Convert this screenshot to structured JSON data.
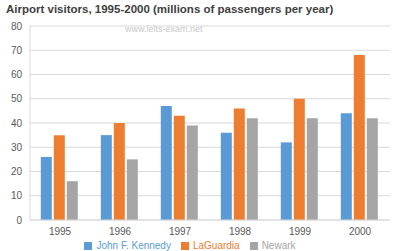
{
  "chart_data": {
    "type": "bar",
    "title": "Airport visitors, 1995-2000 (millions of passengers per year)",
    "annotations": [
      "www.ielts-exam.net"
    ],
    "categories": [
      "1995",
      "1996",
      "1997",
      "1998",
      "1999",
      "2000"
    ],
    "series": [
      {
        "name": "John F. Kennedy",
        "color": "#5b9bd5",
        "values": [
          26,
          35,
          47,
          36,
          32,
          44
        ]
      },
      {
        "name": "LaGuardia",
        "color": "#ed7d31",
        "values": [
          35,
          40,
          43,
          46,
          50,
          68
        ]
      },
      {
        "name": "Newark",
        "color": "#a5a5a5",
        "values": [
          16,
          25,
          39,
          42,
          42,
          42
        ]
      }
    ],
    "ylim": [
      0,
      80
    ],
    "yticks": [
      0,
      10,
      20,
      30,
      40,
      50,
      60,
      70,
      80
    ],
    "grid": true,
    "legend": "bottom"
  }
}
